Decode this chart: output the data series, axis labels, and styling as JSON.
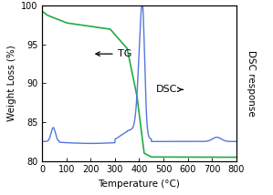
{
  "xlabel": "Temperature (°C)",
  "ylabel_left": "Weight Loss (%)",
  "ylabel_right": "DSC response",
  "xlim": [
    0,
    800
  ],
  "ylim_left": [
    80,
    100
  ],
  "ylim_right": [
    80,
    100
  ],
  "yticks_left": [
    80,
    85,
    90,
    95,
    100
  ],
  "xticks": [
    0,
    100,
    200,
    300,
    400,
    500,
    600,
    700,
    800
  ],
  "tg_color": "#22aa44",
  "dsc_color": "#5577dd",
  "tg_annotation": "TG",
  "dsc_annotation": "DSC"
}
